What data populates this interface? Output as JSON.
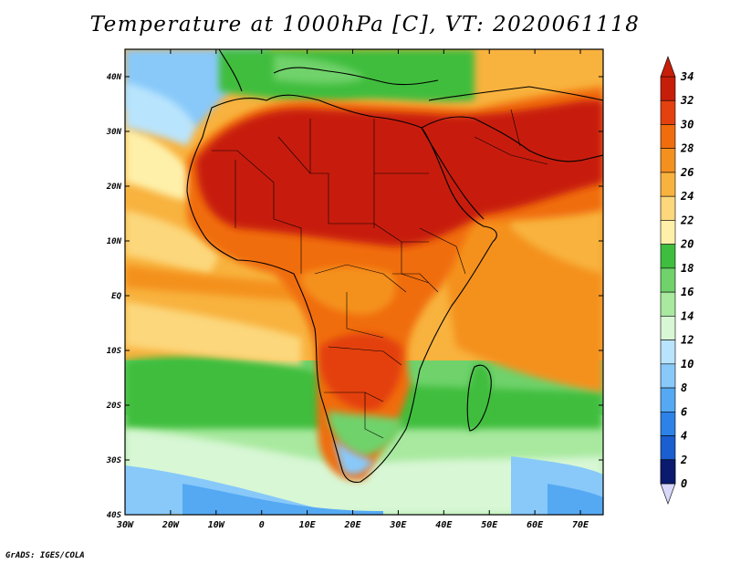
{
  "title": "Temperature at 1000hPa [C], VT: 2020061118",
  "credit": "GrADS: IGES/COLA",
  "axes": {
    "lon_ticks": [
      "30W",
      "20W",
      "10W",
      "0",
      "10E",
      "20E",
      "30E",
      "40E",
      "50E",
      "60E",
      "70E"
    ],
    "lat_ticks": [
      "40N",
      "30N",
      "20N",
      "10N",
      "EQ",
      "10S",
      "20S",
      "30S",
      "40S"
    ]
  },
  "colorbar": {
    "levels": [
      "34",
      "32",
      "30",
      "28",
      "26",
      "24",
      "22",
      "20",
      "18",
      "16",
      "14",
      "12",
      "10",
      "8",
      "6",
      "4",
      "2",
      "0"
    ],
    "colors": [
      "#c71e0a",
      "#e3410f",
      "#f06d0e",
      "#f4911e",
      "#f8b23e",
      "#fcd77c",
      "#fef0a9",
      "#3fbd3e",
      "#6fd26b",
      "#a8e99f",
      "#d8f7d5",
      "#b9e4fd",
      "#88c9fa",
      "#55a9f3",
      "#2c82e6",
      "#1a5ed0",
      "#0f3aa8",
      "#0a1a6e"
    ],
    "under_color": "#d8d8fa",
    "over_color": "#c71e0a"
  },
  "map": {
    "projection": "lat-lon",
    "lon_range": [
      -30,
      75
    ],
    "lat_range": [
      -40,
      45
    ],
    "variable": "temperature",
    "units": "C",
    "level_hPa": 1000
  }
}
